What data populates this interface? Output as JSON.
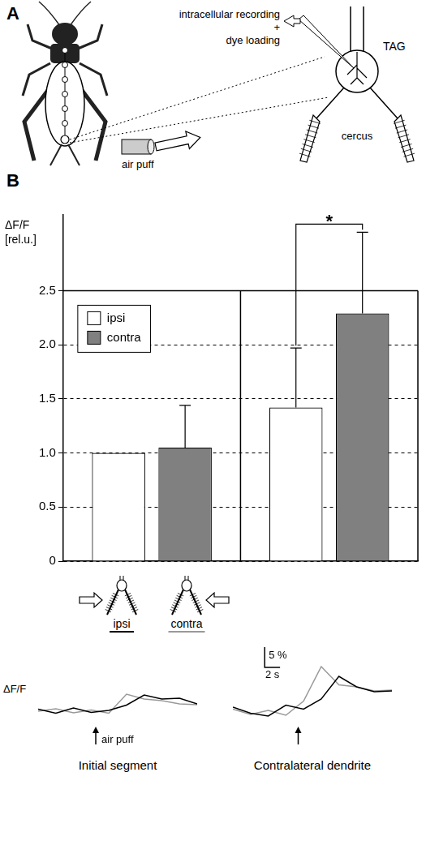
{
  "panel_a": {
    "letter": "A",
    "recording_label": [
      "intracellular recording",
      "+",
      "dye loading"
    ],
    "ganglion_label": "TAG",
    "cercus_label": "cercus",
    "stimulus_label": "air puff"
  },
  "panel_b": {
    "letter": "B"
  },
  "chart_data": [
    {
      "type": "bar",
      "y_label": [
        "ΔF/F",
        "[rel.u.]"
      ],
      "categories": [
        "Initial segment",
        "Contralateral dendrite"
      ],
      "series": [
        {
          "name": "ipsi",
          "color": "#ffffff",
          "values": [
            1.0,
            1.42
          ],
          "errors": [
            null,
            0.55
          ]
        },
        {
          "name": "contra",
          "color": "#808080",
          "values": [
            1.05,
            2.29
          ],
          "errors": [
            0.39,
            0.75
          ]
        }
      ],
      "ylim": [
        0,
        3.2
      ],
      "yticks": [
        0,
        0.5,
        {
          "value": 1,
          "label": "1.0"
        },
        1.5,
        {
          "value": 2,
          "label": "2.0"
        },
        2.5
      ],
      "grid": true,
      "legend": "upper left",
      "tick_labels": "y",
      "significance": [
        {
          "category": "Contralateral dendrite",
          "label": "*"
        }
      ],
      "stimulus_labels": [
        "ipsi",
        "contra"
      ]
    },
    {
      "type": "line",
      "y_label": "ΔF/F",
      "annotation": "air puff",
      "stimulus_x": 7.5,
      "x": [
        0,
        2.3,
        4.6,
        6.9,
        9.2,
        11.5,
        13.8,
        16.1,
        18.4,
        20.7
      ],
      "series": [
        {
          "color": "#000000",
          "values": [
            0.5,
            -0.5,
            0.8,
            -0.3,
            0.2,
            1.5,
            4.0,
            3.0,
            3.2,
            1.8
          ]
        },
        {
          "color": "#999999",
          "values": [
            0,
            0.6,
            -0.4,
            0.3,
            -0.5,
            4.2,
            3.0,
            2.6,
            1.8,
            1.6
          ]
        }
      ],
      "xlim": [
        0,
        20.7
      ],
      "ylim": [
        -3,
        16
      ],
      "tick_labels": false
    },
    {
      "type": "line",
      "stimulus_x": 8.5,
      "scale_bar": {
        "y": 5,
        "y_label": "5 %",
        "x": 2,
        "x_label": "2 s"
      },
      "x": [
        0,
        2.3,
        4.6,
        6.9,
        9.2,
        11.5,
        13.8,
        16.1,
        18.4,
        20.7
      ],
      "series": [
        {
          "color": "#000000",
          "values": [
            1.0,
            -0.5,
            -1.2,
            1.5,
            0.5,
            3.0,
            8.6,
            6.0,
            4.8,
            5.0
          ]
        },
        {
          "color": "#999999",
          "values": [
            0.5,
            -0.8,
            0.2,
            -1.0,
            2.5,
            11.0,
            6.5,
            6.0,
            5.0,
            5.2
          ]
        }
      ],
      "xlim": [
        0,
        20.7
      ],
      "ylim": [
        -3,
        16
      ],
      "tick_labels": false
    }
  ]
}
